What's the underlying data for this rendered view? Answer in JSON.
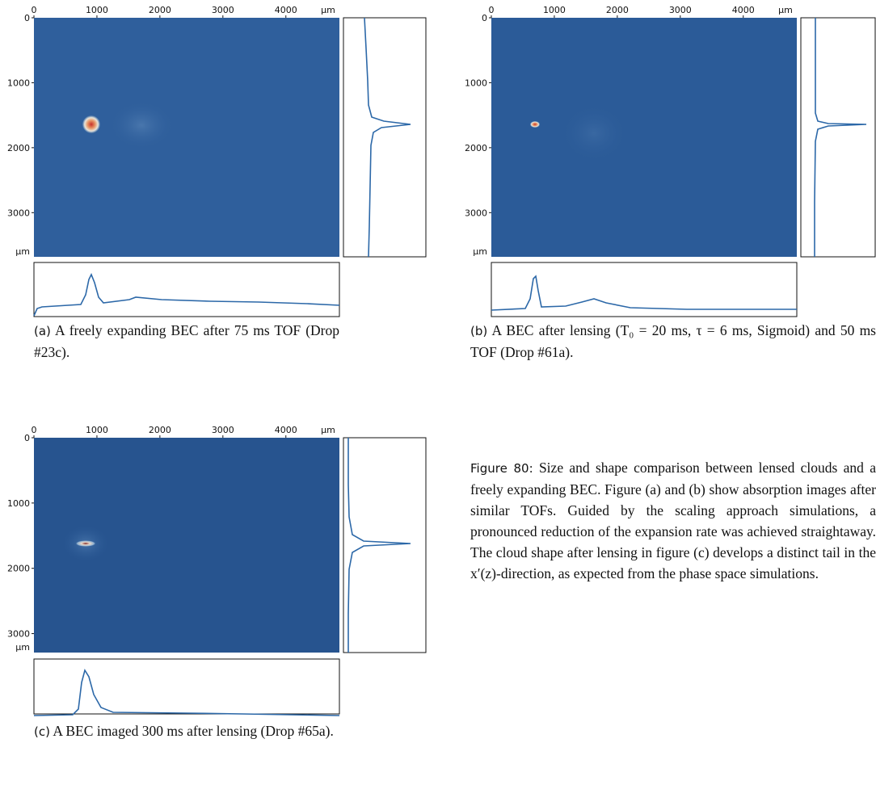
{
  "panels": [
    {
      "label": "(a)",
      "caption": "A freely expanding BEC after 75 ms TOF (Drop #23c).",
      "image": {
        "xlim": [
          0,
          4850
        ],
        "ylim": [
          0,
          3680
        ],
        "xticks": [
          0,
          1000,
          2000,
          3000,
          4000
        ],
        "yticks": [
          0,
          1000,
          2000,
          3000
        ],
        "unit": "μm"
      }
    },
    {
      "label": "(b)",
      "caption": "A BEC after lensing (T₀ = 20 ms, τ = 6 ms, Sigmoid) and 50 ms TOF (Drop #61a).",
      "image": {
        "xlim": [
          0,
          4850
        ],
        "ylim": [
          0,
          3680
        ],
        "xticks": [
          0,
          1000,
          2000,
          3000,
          4000
        ],
        "yticks": [
          0,
          1000,
          2000,
          3000
        ],
        "unit": "μm"
      }
    },
    {
      "label": "(c)",
      "caption": "A BEC imaged 300 ms after lensing (Drop #65a).",
      "image": {
        "xlim": [
          0,
          4850
        ],
        "ylim": [
          0,
          3290
        ],
        "xticks": [
          0,
          1000,
          2000,
          3000,
          4000
        ],
        "yticks": [
          0,
          1000,
          2000,
          3000
        ],
        "unit": "μm"
      }
    }
  ],
  "figure": {
    "label": "Figure 80:",
    "text": "Size and shape comparison between lensed clouds and a freely expanding BEC. Figure (a) and (b) show absorption images after similar TOFs. Guided by the scaling approach simulations, a pronounced reduction of the expansion rate was achieved straightaway. The cloud shape after lensing in figure (c) develops a distinct tail in the x′(z)-direction, as expected from the phase space simulations."
  }
}
